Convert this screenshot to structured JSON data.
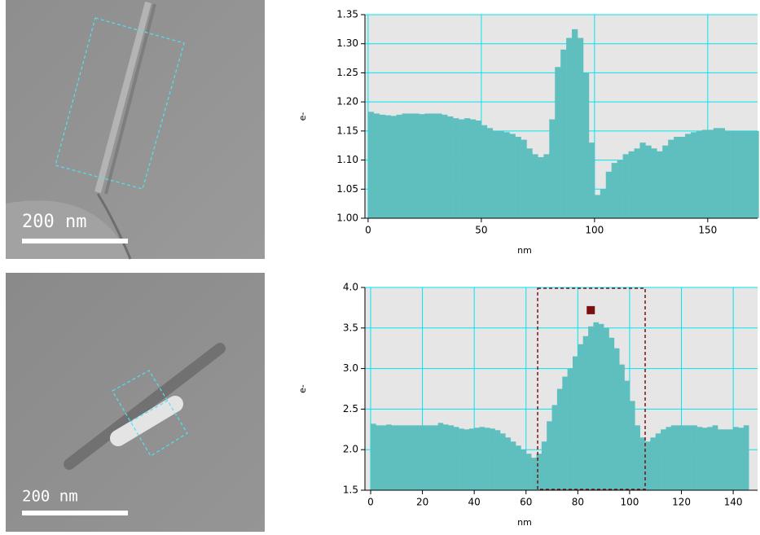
{
  "micrographs": [
    {
      "scale_bar": "200 nm"
    },
    {
      "scale_bar": "200 nm"
    }
  ],
  "chart_data": [
    {
      "type": "histogram",
      "x_label": "nm",
      "y_label": "e-",
      "color": "#5fbfbf",
      "grid": true,
      "xlim": [
        -1.4,
        172
      ],
      "ylim": [
        1.0,
        1.35
      ],
      "xticks": [
        0,
        50,
        100,
        150
      ],
      "yticks": [
        {
          "value": 1.0,
          "label": "1.00"
        },
        {
          "value": 1.05,
          "label": "1.05"
        },
        {
          "value": 1.1,
          "label": "1.10"
        },
        {
          "value": 1.15,
          "label": "1.15"
        },
        {
          "value": 1.2,
          "label": "1.20"
        },
        {
          "value": 1.25,
          "label": "1.25"
        },
        {
          "value": 1.3,
          "label": "1.30"
        },
        {
          "value": 1.35,
          "label": "1.35"
        }
      ],
      "bins": [
        0,
        2.5,
        5,
        7.5,
        10,
        12.5,
        15,
        17.5,
        20,
        22.5,
        25,
        27.5,
        30,
        32.5,
        35,
        37.5,
        40,
        42.5,
        45,
        47.5,
        50,
        52.5,
        55,
        57.5,
        60,
        62.5,
        65,
        67.5,
        70,
        72.5,
        75,
        77.5,
        80,
        82.5,
        85,
        87.5,
        90,
        92.5,
        95,
        97.5,
        100,
        102.5,
        105,
        107.5,
        110,
        112.5,
        115,
        117.5,
        120,
        122.5,
        125,
        127.5,
        130,
        132.5,
        135,
        137.5,
        140,
        142.5,
        145,
        147.5,
        150,
        152.5,
        155,
        157.5,
        160,
        162.5,
        165,
        167.5,
        170,
        172.5
      ],
      "values": [
        1.183,
        1.18,
        1.178,
        1.177,
        1.176,
        1.178,
        1.18,
        1.18,
        1.18,
        1.179,
        1.18,
        1.18,
        1.18,
        1.178,
        1.175,
        1.172,
        1.17,
        1.172,
        1.17,
        1.168,
        1.16,
        1.155,
        1.15,
        1.15,
        1.148,
        1.145,
        1.14,
        1.135,
        1.12,
        1.11,
        1.105,
        1.11,
        1.17,
        1.26,
        1.29,
        1.31,
        1.325,
        1.31,
        1.25,
        1.13,
        1.04,
        1.05,
        1.08,
        1.095,
        1.1,
        1.11,
        1.115,
        1.12,
        1.13,
        1.125,
        1.12,
        1.115,
        1.125,
        1.135,
        1.14,
        1.14,
        1.145,
        1.148,
        1.15,
        1.152,
        1.152,
        1.155,
        1.155,
        1.15,
        1.15,
        1.15,
        1.15,
        1.15,
        1.15
      ]
    },
    {
      "type": "histogram",
      "x_label": "nm",
      "y_label": "e-",
      "color": "#5fbfbf",
      "grid": true,
      "xlim": [
        -2.2,
        149.4
      ],
      "ylim": [
        1.5,
        4.0
      ],
      "xticks": [
        0,
        20,
        40,
        60,
        80,
        100,
        120,
        140
      ],
      "yticks": [
        1.5,
        {
          "value": 2.0,
          "label": "2.0"
        },
        2.5,
        {
          "value": 3.0,
          "label": "3.0"
        },
        3.5,
        {
          "value": 4.0,
          "label": "4.0"
        }
      ],
      "bins": [
        0,
        2,
        4,
        6,
        8,
        10,
        12,
        14,
        16,
        18,
        20,
        22,
        24,
        26,
        28,
        30,
        32,
        34,
        36,
        38,
        40,
        42,
        44,
        46,
        48,
        50,
        52,
        54,
        56,
        58,
        60,
        62,
        64,
        66,
        68,
        70,
        72,
        74,
        76,
        78,
        80,
        82,
        84,
        86,
        88,
        90,
        92,
        94,
        96,
        98,
        100,
        102,
        104,
        106,
        108,
        110,
        112,
        114,
        116,
        118,
        120,
        122,
        124,
        126,
        128,
        130,
        132,
        134,
        136,
        138,
        140,
        142,
        144,
        146
      ],
      "values": [
        2.32,
        2.3,
        2.3,
        2.31,
        2.3,
        2.3,
        2.3,
        2.3,
        2.3,
        2.3,
        2.3,
        2.3,
        2.3,
        2.33,
        2.31,
        2.3,
        2.28,
        2.26,
        2.25,
        2.26,
        2.27,
        2.28,
        2.27,
        2.26,
        2.24,
        2.2,
        2.15,
        2.1,
        2.05,
        2.0,
        1.95,
        1.9,
        1.95,
        2.1,
        2.35,
        2.55,
        2.75,
        2.9,
        3.0,
        3.15,
        3.3,
        3.4,
        3.52,
        3.57,
        3.55,
        3.5,
        3.38,
        3.25,
        3.05,
        2.85,
        2.6,
        2.3,
        2.15,
        2.1,
        2.15,
        2.2,
        2.25,
        2.28,
        2.3,
        2.3,
        2.3,
        2.3,
        2.3,
        2.28,
        2.27,
        2.28,
        2.3,
        2.25,
        2.25,
        2.25,
        2.28,
        2.27,
        2.3
      ],
      "region": [
        64.5,
        106
      ],
      "region_color": "#7a1010",
      "marker": {
        "x": 85,
        "y": 3.72
      }
    }
  ]
}
